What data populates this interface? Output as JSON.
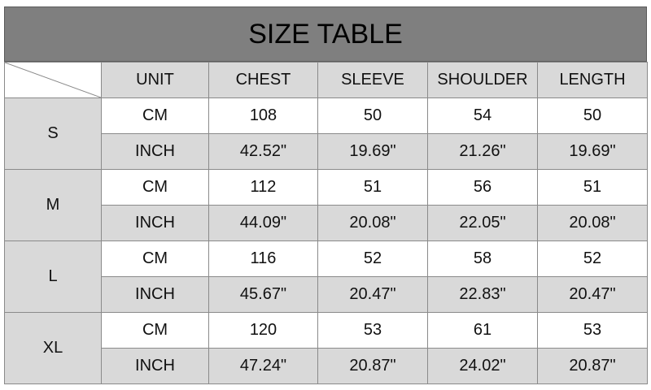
{
  "title": "SIZE TABLE",
  "headers": [
    "UNIT",
    "CHEST",
    "SLEEVE",
    "SHOULDER",
    "LENGTH"
  ],
  "sizes": [
    {
      "size": "S",
      "rows": [
        [
          "CM",
          "108",
          "50",
          "54",
          "50"
        ],
        [
          "INCH",
          "42.52\"",
          "19.69\"",
          "21.26\"",
          "19.69\""
        ]
      ]
    },
    {
      "size": "M",
      "rows": [
        [
          "CM",
          "112",
          "51",
          "56",
          "51"
        ],
        [
          "INCH",
          "44.09\"",
          "20.08\"",
          "22.05\"",
          "20.08\""
        ]
      ]
    },
    {
      "size": "L",
      "rows": [
        [
          "CM",
          "116",
          "52",
          "58",
          "52"
        ],
        [
          "INCH",
          "45.67\"",
          "20.47\"",
          "22.83\"",
          "20.47\""
        ]
      ]
    },
    {
      "size": "XL",
      "rows": [
        [
          "CM",
          "120",
          "53",
          "61",
          "53"
        ],
        [
          "INCH",
          "47.24\"",
          "20.87\"",
          "24.02\"",
          "20.87\""
        ]
      ]
    }
  ],
  "colors": {
    "title_bg": "#7f7f7f",
    "shaded": "#d9d9d9",
    "white": "#ffffff"
  }
}
